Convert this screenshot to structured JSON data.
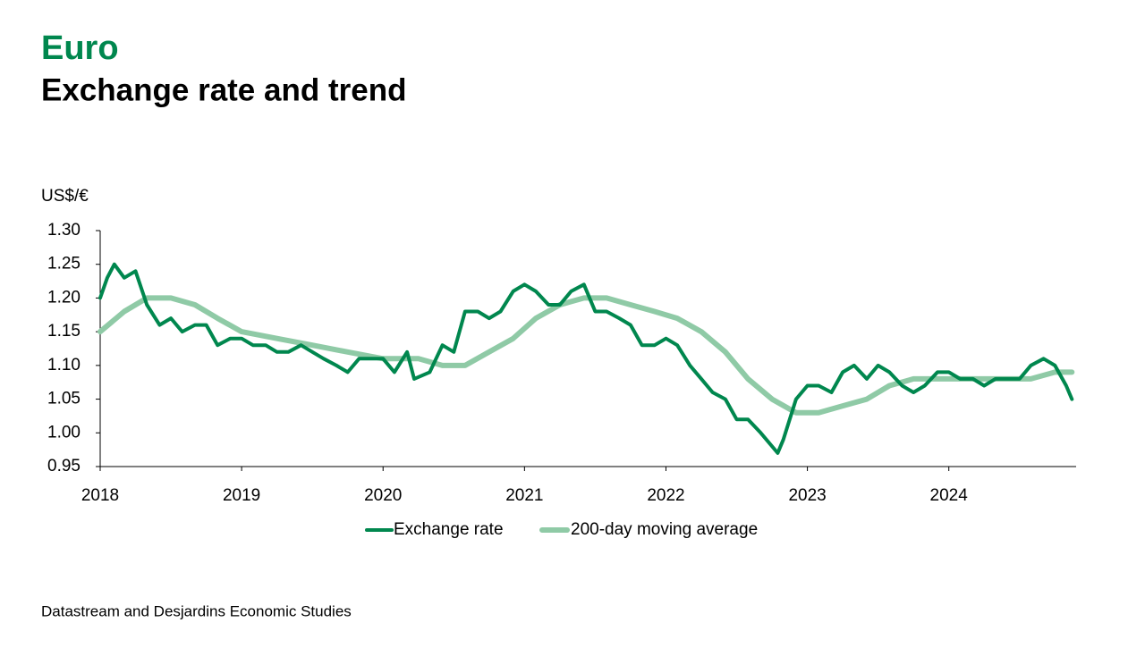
{
  "chart_data": {
    "type": "line",
    "title": "Euro",
    "subtitle": "Exchange rate and trend",
    "y_label": "US$/€",
    "source": "Datastream and Desjardins Economic Studies",
    "xlim": [
      2018,
      2024.9
    ],
    "xticks": [
      2018,
      2019,
      2020,
      2021,
      2022,
      2023,
      2024
    ],
    "ylim": [
      0.95,
      1.3
    ],
    "yticks": [
      {
        "value": 0.95,
        "label": "0.95"
      },
      {
        "value": 1.0,
        "label": "1.00"
      },
      {
        "value": 1.05,
        "label": "1.05"
      },
      {
        "value": 1.1,
        "label": "1.10"
      },
      {
        "value": 1.15,
        "label": "1.15"
      },
      {
        "value": 1.2,
        "label": "1.20"
      },
      {
        "value": 1.25,
        "label": "1.25"
      },
      {
        "value": 1.3,
        "label": "1.30"
      }
    ],
    "legend": "bottom",
    "series": [
      {
        "name": "Exchange rate",
        "color": "#00874e",
        "x": [
          2018.0,
          2018.05,
          2018.1,
          2018.17,
          2018.25,
          2018.33,
          2018.42,
          2018.5,
          2018.58,
          2018.67,
          2018.75,
          2018.83,
          2018.92,
          2019.0,
          2019.08,
          2019.17,
          2019.25,
          2019.33,
          2019.42,
          2019.5,
          2019.58,
          2019.67,
          2019.75,
          2019.83,
          2019.92,
          2020.0,
          2020.08,
          2020.17,
          2020.22,
          2020.33,
          2020.42,
          2020.5,
          2020.58,
          2020.67,
          2020.75,
          2020.83,
          2020.92,
          2021.0,
          2021.08,
          2021.17,
          2021.25,
          2021.33,
          2021.42,
          2021.5,
          2021.58,
          2021.67,
          2021.75,
          2021.83,
          2021.92,
          2022.0,
          2022.08,
          2022.17,
          2022.25,
          2022.33,
          2022.42,
          2022.5,
          2022.58,
          2022.67,
          2022.75,
          2022.79,
          2022.83,
          2022.92,
          2023.0,
          2023.08,
          2023.17,
          2023.25,
          2023.33,
          2023.42,
          2023.5,
          2023.58,
          2023.67,
          2023.75,
          2023.83,
          2023.92,
          2024.0,
          2024.08,
          2024.17,
          2024.25,
          2024.33,
          2024.42,
          2024.5,
          2024.58,
          2024.67,
          2024.75,
          2024.83,
          2024.87
        ],
        "values": [
          1.2,
          1.23,
          1.25,
          1.23,
          1.24,
          1.19,
          1.16,
          1.17,
          1.15,
          1.16,
          1.16,
          1.13,
          1.14,
          1.14,
          1.13,
          1.13,
          1.12,
          1.12,
          1.13,
          1.12,
          1.11,
          1.1,
          1.09,
          1.11,
          1.11,
          1.11,
          1.09,
          1.12,
          1.08,
          1.09,
          1.13,
          1.12,
          1.18,
          1.18,
          1.17,
          1.18,
          1.21,
          1.22,
          1.21,
          1.19,
          1.19,
          1.21,
          1.22,
          1.18,
          1.18,
          1.17,
          1.16,
          1.13,
          1.13,
          1.14,
          1.13,
          1.1,
          1.08,
          1.06,
          1.05,
          1.02,
          1.02,
          1.0,
          0.98,
          0.97,
          0.99,
          1.05,
          1.07,
          1.07,
          1.06,
          1.09,
          1.1,
          1.08,
          1.1,
          1.09,
          1.07,
          1.06,
          1.07,
          1.09,
          1.09,
          1.08,
          1.08,
          1.07,
          1.08,
          1.08,
          1.08,
          1.1,
          1.11,
          1.1,
          1.07,
          1.05
        ]
      },
      {
        "name": "200-day moving average",
        "color": "#8fcaa6",
        "x": [
          2018.0,
          2018.17,
          2018.33,
          2018.5,
          2018.67,
          2018.83,
          2019.0,
          2019.25,
          2019.5,
          2019.75,
          2020.0,
          2020.25,
          2020.42,
          2020.58,
          2020.75,
          2020.92,
          2021.08,
          2021.25,
          2021.42,
          2021.58,
          2021.75,
          2021.92,
          2022.08,
          2022.25,
          2022.42,
          2022.58,
          2022.75,
          2022.92,
          2023.08,
          2023.25,
          2023.42,
          2023.58,
          2023.75,
          2023.92,
          2024.08,
          2024.25,
          2024.42,
          2024.58,
          2024.75,
          2024.87
        ],
        "values": [
          1.15,
          1.18,
          1.2,
          1.2,
          1.19,
          1.17,
          1.15,
          1.14,
          1.13,
          1.12,
          1.11,
          1.11,
          1.1,
          1.1,
          1.12,
          1.14,
          1.17,
          1.19,
          1.2,
          1.2,
          1.19,
          1.18,
          1.17,
          1.15,
          1.12,
          1.08,
          1.05,
          1.03,
          1.03,
          1.04,
          1.05,
          1.07,
          1.08,
          1.08,
          1.08,
          1.08,
          1.08,
          1.08,
          1.09,
          1.09
        ]
      }
    ]
  }
}
